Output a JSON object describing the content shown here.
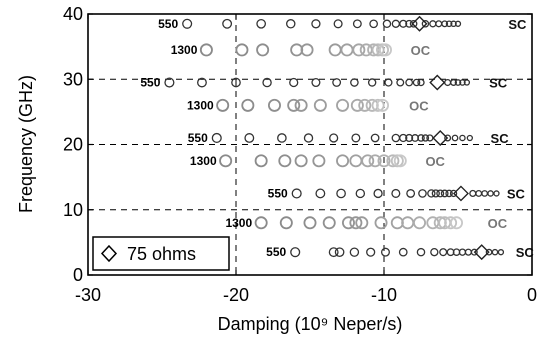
{
  "chart_data": {
    "type": "scatter",
    "xlabel": "Damping (10⁹ Neper/s)",
    "ylabel": "Frequency (GHz)",
    "xlim": [
      -30,
      0
    ],
    "ylim": [
      0,
      40
    ],
    "xticks": [
      "-30",
      "-20",
      "-10",
      "0"
    ],
    "xtick_values": [
      -30,
      -20,
      -10,
      0
    ],
    "yticks": [
      "0",
      "10",
      "20",
      "30",
      "40"
    ],
    "ytick_values": [
      0,
      10,
      20,
      30,
      40
    ],
    "grid": "dashed at x = -20, -10 and y = 10, 20, 30",
    "legend": {
      "label": "75 ohms",
      "marker": "diamond",
      "placement": "bottom-left"
    },
    "colors": {
      "sc": "#333333",
      "oc": "#8a8a8a",
      "oc_end": "#c8c8c8",
      "axis": "#000000"
    },
    "rows": [
      {
        "label": "550",
        "end_label": "SC",
        "freq": 38.5,
        "end_x": -1.6,
        "points": [
          -23.3,
          -20.6,
          -18.3,
          -16.3,
          -14.6,
          -13.1,
          -11.8,
          -10.7,
          -9.8,
          -9.2,
          -8.7,
          -8.3,
          -8.0,
          -7.2,
          -6.7,
          -6.3,
          -5.9,
          -5.6,
          -5.3,
          -5.0
        ],
        "diamond_x": -7.6
      },
      {
        "label": "1300",
        "end_label": "OC",
        "freq": 34.5,
        "end_x": -8.2,
        "points": [
          -22.0,
          -19.6,
          -18.2,
          -15.9,
          -15.2,
          -13.3,
          -12.5,
          -11.7,
          -11.2,
          -10.7,
          -10.4,
          -10.1,
          -9.9
        ],
        "diamond_x": null
      },
      {
        "label": "550",
        "end_label": "SC",
        "freq": 29.5,
        "end_x": -2.9,
        "points": [
          -24.5,
          -22.3,
          -20.0,
          -17.9,
          -16.1,
          -14.6,
          -13.2,
          -12.0,
          -10.8,
          -9.7,
          -8.9,
          -8.3,
          -7.8,
          -7.5,
          -5.7,
          -5.3,
          -5.0,
          -4.7,
          -4.4
        ],
        "diamond_x": -6.4
      },
      {
        "label": "1300",
        "end_label": "OC",
        "freq": 26.0,
        "end_x": -8.3,
        "points": [
          -20.9,
          -19.2,
          -17.4,
          -16.1,
          -15.6,
          -14.3,
          -12.8,
          -11.8,
          -11.3,
          -10.8,
          -10.4,
          -10.1
        ],
        "diamond_x": null
      },
      {
        "label": "550",
        "end_label": "SC",
        "freq": 21.0,
        "end_x": -2.8,
        "points": [
          -21.3,
          -19.1,
          -16.9,
          -15.1,
          -13.4,
          -11.9,
          -10.6,
          -9.2,
          -8.7,
          -8.3,
          -7.9,
          -7.5,
          -7.2,
          -6.9,
          -5.7,
          -5.2,
          -4.7,
          -4.2
        ],
        "diamond_x": -6.2
      },
      {
        "label": "1300",
        "end_label": "OC",
        "freq": 17.5,
        "end_x": -7.2,
        "points": [
          -20.7,
          -18.3,
          -16.7,
          -15.6,
          -14.4,
          -12.8,
          -11.9,
          -11.1,
          -10.6,
          -10.0,
          -9.4,
          -9.1,
          -8.9
        ],
        "diamond_x": null
      },
      {
        "label": "550",
        "end_label": "SC",
        "freq": 12.5,
        "end_x": -1.7,
        "points": [
          -15.9,
          -14.3,
          -12.9,
          -11.6,
          -10.4,
          -9.2,
          -8.2,
          -7.4,
          -6.8,
          -6.5,
          -6.2,
          -5.9,
          -5.6,
          -5.3,
          -4.0,
          -3.6,
          -3.2,
          -2.8,
          -2.4
        ],
        "diamond_x": -4.8
      },
      {
        "label": "1300",
        "end_label": "OC",
        "freq": 8.0,
        "end_x": -3.0,
        "points": [
          -18.3,
          -16.6,
          -15.0,
          -13.7,
          -12.4,
          -11.9,
          -11.5,
          -10.2,
          -9.1,
          -8.4,
          -7.6,
          -6.7,
          -6.2,
          -5.9,
          -5.5,
          -5.1
        ],
        "diamond_x": null
      },
      {
        "label": "550",
        "end_label": "SC",
        "freq": 3.5,
        "end_x": -1.1,
        "points": [
          -16.0,
          -13.4,
          -13.0,
          -12.0,
          -10.9,
          -9.9,
          -8.7,
          -7.5,
          -6.6,
          -6.0,
          -5.5,
          -5.1,
          -4.7,
          -4.3,
          -3.9,
          -2.9,
          -2.5,
          -2.1
        ],
        "diamond_x": -3.4
      }
    ]
  }
}
